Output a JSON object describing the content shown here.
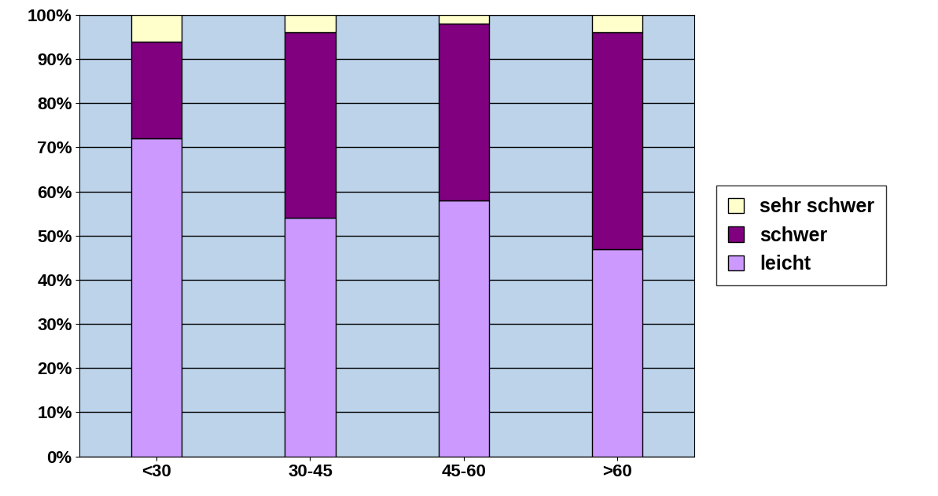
{
  "chart_data": {
    "type": "bar",
    "stacked": true,
    "categories": [
      "<30",
      "30-45",
      "45-60",
      ">60"
    ],
    "series": [
      {
        "name": "leicht",
        "color": "#cc99ff",
        "values": [
          72,
          54,
          58,
          47
        ]
      },
      {
        "name": "schwer",
        "color": "#800080",
        "values": [
          22,
          42,
          40,
          49
        ]
      },
      {
        "name": "sehr schwer",
        "color": "#ffffcc",
        "values": [
          6,
          4,
          2,
          4
        ]
      }
    ],
    "ylim": [
      0,
      100
    ],
    "yticks": [
      {
        "value": 0,
        "label": "0%"
      },
      {
        "value": 10,
        "label": "10%"
      },
      {
        "value": 20,
        "label": "20%"
      },
      {
        "value": 30,
        "label": "30%"
      },
      {
        "value": 40,
        "label": "40%"
      },
      {
        "value": 50,
        "label": "50%"
      },
      {
        "value": 60,
        "label": "60%"
      },
      {
        "value": 70,
        "label": "70%"
      },
      {
        "value": 80,
        "label": "80%"
      },
      {
        "value": 90,
        "label": "90%"
      },
      {
        "value": 100,
        "label": "100%"
      }
    ],
    "grid": true,
    "legend": "right"
  }
}
